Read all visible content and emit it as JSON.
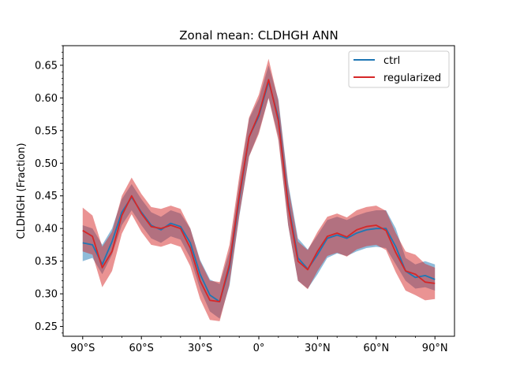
{
  "chart_data": {
    "type": "line",
    "title": "Zonal mean: CLDHGH ANN",
    "xlabel": "",
    "ylabel": "CLDHGH (Fraction)",
    "xlim": [
      -100,
      100
    ],
    "ylim": [
      0.235,
      0.68
    ],
    "x_ticks": [
      {
        "value": -90,
        "label": "90°S"
      },
      {
        "value": -60,
        "label": "60°S"
      },
      {
        "value": -30,
        "label": "30°S"
      },
      {
        "value": 0,
        "label": "0°"
      },
      {
        "value": 30,
        "label": "30°N"
      },
      {
        "value": 60,
        "label": "60°N"
      },
      {
        "value": 90,
        "label": "90°N"
      }
    ],
    "y_ticks": [
      {
        "value": 0.25,
        "label": "0.25"
      },
      {
        "value": 0.3,
        "label": "0.30"
      },
      {
        "value": 0.35,
        "label": "0.35"
      },
      {
        "value": 0.4,
        "label": "0.40"
      },
      {
        "value": 0.45,
        "label": "0.45"
      },
      {
        "value": 0.5,
        "label": "0.50"
      },
      {
        "value": 0.55,
        "label": "0.55"
      },
      {
        "value": 0.6,
        "label": "0.60"
      },
      {
        "value": 0.65,
        "label": "0.65"
      }
    ],
    "legend_position": "top-right",
    "x": [
      -90,
      -85,
      -80,
      -75,
      -70,
      -65,
      -60,
      -55,
      -50,
      -45,
      -40,
      -35,
      -30,
      -25,
      -20,
      -15,
      -10,
      -5,
      0,
      5,
      10,
      15,
      20,
      25,
      30,
      35,
      40,
      45,
      50,
      55,
      60,
      65,
      70,
      75,
      80,
      85,
      90
    ],
    "series": [
      {
        "name": "ctrl",
        "color": "#1f77b4",
        "band_color": "#1f77b4",
        "values": [
          0.378,
          0.375,
          0.345,
          0.38,
          0.425,
          0.448,
          0.425,
          0.405,
          0.398,
          0.408,
          0.403,
          0.378,
          0.33,
          0.298,
          0.288,
          0.34,
          0.445,
          0.54,
          0.572,
          0.625,
          0.57,
          0.44,
          0.355,
          0.338,
          0.36,
          0.385,
          0.39,
          0.385,
          0.393,
          0.398,
          0.4,
          0.4,
          0.372,
          0.335,
          0.325,
          0.328,
          0.322
        ],
        "lower": [
          0.35,
          0.355,
          0.33,
          0.36,
          0.405,
          0.428,
          0.405,
          0.385,
          0.378,
          0.388,
          0.383,
          0.355,
          0.307,
          0.273,
          0.262,
          0.312,
          0.418,
          0.51,
          0.548,
          0.6,
          0.54,
          0.405,
          0.32,
          0.308,
          0.33,
          0.355,
          0.362,
          0.358,
          0.365,
          0.37,
          0.372,
          0.37,
          0.345,
          0.32,
          0.308,
          0.31,
          0.305
        ],
        "upper": [
          0.405,
          0.4,
          0.375,
          0.4,
          0.445,
          0.468,
          0.445,
          0.425,
          0.418,
          0.428,
          0.423,
          0.4,
          0.352,
          0.322,
          0.315,
          0.365,
          0.47,
          0.568,
          0.598,
          0.65,
          0.598,
          0.47,
          0.385,
          0.368,
          0.39,
          0.413,
          0.418,
          0.413,
          0.42,
          0.425,
          0.428,
          0.428,
          0.4,
          0.355,
          0.345,
          0.35,
          0.345
        ]
      },
      {
        "name": "regularized",
        "color": "#d62728",
        "band_color": "#d62728",
        "values": [
          0.397,
          0.388,
          0.34,
          0.365,
          0.42,
          0.45,
          0.423,
          0.403,
          0.4,
          0.405,
          0.4,
          0.37,
          0.32,
          0.29,
          0.288,
          0.345,
          0.45,
          0.54,
          0.575,
          0.628,
          0.565,
          0.435,
          0.35,
          0.337,
          0.365,
          0.388,
          0.393,
          0.387,
          0.398,
          0.403,
          0.405,
          0.397,
          0.363,
          0.335,
          0.33,
          0.318,
          0.316
        ],
        "lower": [
          0.365,
          0.36,
          0.31,
          0.335,
          0.392,
          0.422,
          0.395,
          0.375,
          0.372,
          0.377,
          0.372,
          0.342,
          0.292,
          0.26,
          0.258,
          0.315,
          0.42,
          0.51,
          0.545,
          0.6,
          0.535,
          0.405,
          0.32,
          0.307,
          0.335,
          0.358,
          0.363,
          0.357,
          0.368,
          0.373,
          0.375,
          0.367,
          0.333,
          0.305,
          0.298,
          0.29,
          0.292
        ],
        "upper": [
          0.432,
          0.42,
          0.372,
          0.395,
          0.45,
          0.478,
          0.453,
          0.433,
          0.43,
          0.435,
          0.43,
          0.4,
          0.35,
          0.32,
          0.318,
          0.375,
          0.48,
          0.57,
          0.605,
          0.66,
          0.595,
          0.465,
          0.38,
          0.367,
          0.395,
          0.418,
          0.423,
          0.417,
          0.428,
          0.433,
          0.435,
          0.427,
          0.393,
          0.365,
          0.36,
          0.346,
          0.34
        ]
      }
    ]
  }
}
